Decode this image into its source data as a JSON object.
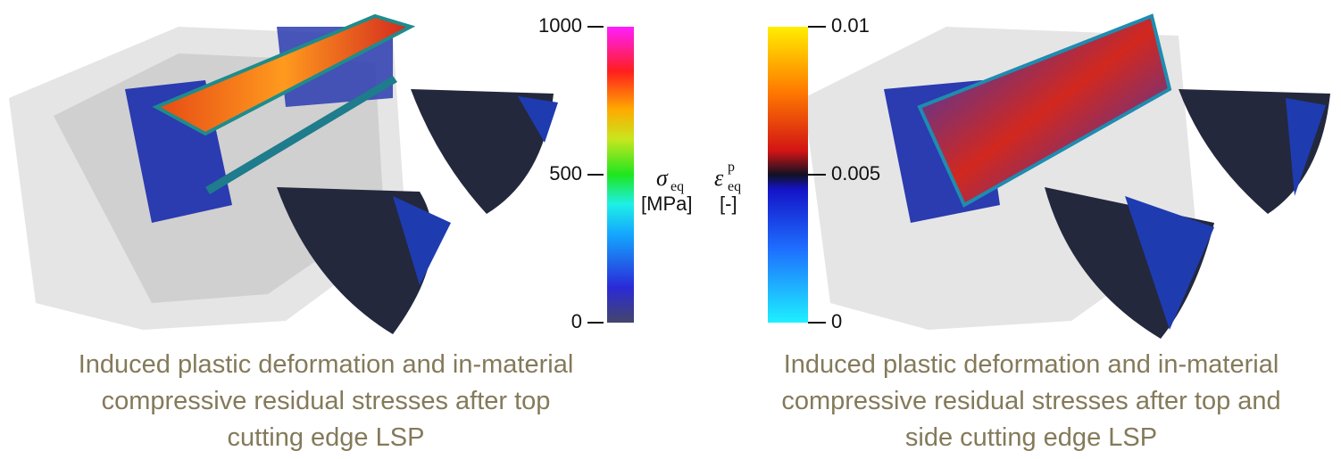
{
  "stress_colorbar": {
    "symbol": "σ",
    "subscript": "eq",
    "unit": "[MPa]",
    "lim": [
      0,
      1000
    ],
    "ticks": [
      1000,
      500,
      0
    ]
  },
  "strain_colorbar": {
    "symbol": "ε",
    "subscript": "eq",
    "superscript": "p",
    "unit": "[-]",
    "lim": [
      0,
      0.01
    ],
    "ticks": [
      0.01,
      0.005,
      0
    ]
  },
  "left_caption": {
    "lines": [
      "Induced plastic deformation and in-material",
      "compressive residual stresses after top",
      "cutting edge LSP"
    ]
  },
  "right_caption": {
    "lines": [
      "Induced plastic deformation and in-material",
      "compressive residual stresses after top and",
      "side cutting edge LSP"
    ]
  }
}
